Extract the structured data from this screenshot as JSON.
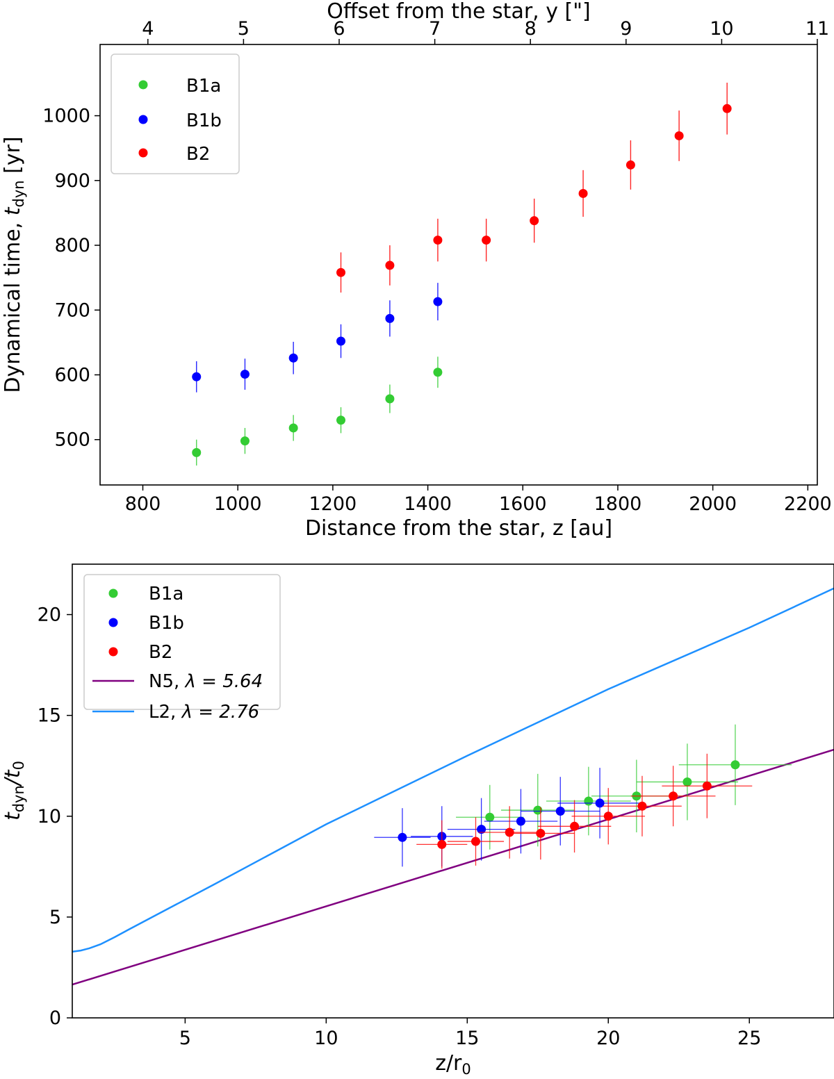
{
  "chart_data": [
    {
      "type": "scatter",
      "xlabel": "Distance from the star, z [au]",
      "ylabel_main": "Dynamical time, ",
      "ylabel_var": "t",
      "ylabel_sub": "dyn",
      "ylabel_unit": " [yr]",
      "top_xlabel": "Offset from the star, y [\"]",
      "xlim": [
        710,
        2220
      ],
      "ylim": [
        430,
        1110
      ],
      "xticks": [
        800,
        1000,
        1200,
        1400,
        1600,
        1800,
        2000,
        2200
      ],
      "yticks": [
        500,
        600,
        700,
        800,
        900,
        1000
      ],
      "top_xlim": [
        3.5,
        11.0
      ],
      "top_xticks": [
        4,
        5,
        6,
        7,
        8,
        9,
        10,
        11
      ],
      "legend_position": "upper left",
      "series": [
        {
          "name": "B1a",
          "color": "#33cc33",
          "x": [
            913,
            1015,
            1117,
            1217,
            1320,
            1421
          ],
          "y": [
            480,
            498,
            518,
            530,
            563,
            604
          ],
          "yerr": [
            20,
            20,
            20,
            20,
            22,
            24
          ]
        },
        {
          "name": "B1b",
          "color": "#0000ff",
          "x": [
            913,
            1015,
            1117,
            1217,
            1320,
            1421
          ],
          "y": [
            597,
            601,
            626,
            652,
            687,
            713
          ],
          "yerr": [
            24,
            24,
            25,
            26,
            28,
            29
          ]
        },
        {
          "name": "B2",
          "color": "#ff0000",
          "x": [
            1217,
            1320,
            1421,
            1523,
            1624,
            1727,
            1827,
            1929,
            2030
          ],
          "y": [
            758,
            769,
            808,
            808,
            838,
            880,
            924,
            969,
            1011
          ],
          "yerr": [
            31,
            31,
            33,
            33,
            34,
            36,
            38,
            39,
            40
          ]
        }
      ]
    },
    {
      "type": "scatter",
      "xlabel_var": "z/r",
      "xlabel_sub": "0",
      "ylabel_var": "t",
      "ylabel_sub": "dyn",
      "ylabel_div": "/t",
      "ylabel_sub2": "0",
      "xlim": [
        1.0,
        28.0
      ],
      "ylim": [
        0,
        22.5
      ],
      "xticks": [
        5,
        10,
        15,
        20,
        25
      ],
      "yticks": [
        0,
        5,
        10,
        15,
        20
      ],
      "legend_position": "upper left",
      "series": [
        {
          "name": "B1a",
          "color": "#33cc33",
          "x": [
            15.8,
            17.5,
            19.3,
            21.0,
            22.8,
            24.5
          ],
          "y": [
            9.95,
            10.3,
            10.75,
            11.0,
            11.7,
            12.55
          ],
          "xerr": [
            1.2,
            1.3,
            1.5,
            1.6,
            1.8,
            2.0
          ],
          "yerr": [
            1.6,
            1.8,
            1.7,
            1.8,
            1.9,
            2.0
          ]
        },
        {
          "name": "B1b",
          "color": "#0000ff",
          "x": [
            12.7,
            14.1,
            15.5,
            16.9,
            18.3,
            19.7
          ],
          "y": [
            8.95,
            9.0,
            9.35,
            9.75,
            10.25,
            10.65
          ],
          "xerr": [
            1.0,
            1.1,
            1.2,
            1.3,
            1.4,
            1.5
          ],
          "yerr": [
            1.45,
            1.5,
            1.55,
            1.6,
            1.7,
            1.75
          ]
        },
        {
          "name": "B2",
          "color": "#ff0000",
          "x": [
            14.1,
            15.3,
            16.5,
            17.6,
            18.8,
            20.0,
            21.2,
            22.3,
            23.5
          ],
          "y": [
            8.6,
            8.75,
            9.2,
            9.15,
            9.5,
            10.0,
            10.5,
            11.0,
            11.5
          ],
          "xerr": [
            0.9,
            1.0,
            1.1,
            1.2,
            1.3,
            1.3,
            1.4,
            1.5,
            1.6
          ],
          "yerr": [
            1.2,
            1.2,
            1.3,
            1.3,
            1.3,
            1.4,
            1.5,
            1.5,
            1.6
          ]
        }
      ],
      "lines": [
        {
          "name": "N5",
          "lambda_label": "λ = 5.64",
          "color": "#800080",
          "x": [
            1.0,
            28.0
          ],
          "y": [
            1.65,
            13.3
          ]
        },
        {
          "name": "L2",
          "lambda_label": "λ = 2.76",
          "color": "#1e90ff",
          "x": [
            1.0,
            1.3,
            1.6,
            2.0,
            2.5,
            3.0,
            4.0,
            6.0,
            10.0,
            15.0,
            20.0,
            25.0,
            28.0
          ],
          "y": [
            3.28,
            3.34,
            3.45,
            3.65,
            4.0,
            4.38,
            5.12,
            6.6,
            9.6,
            13.0,
            16.3,
            19.35,
            21.3
          ]
        }
      ]
    }
  ]
}
